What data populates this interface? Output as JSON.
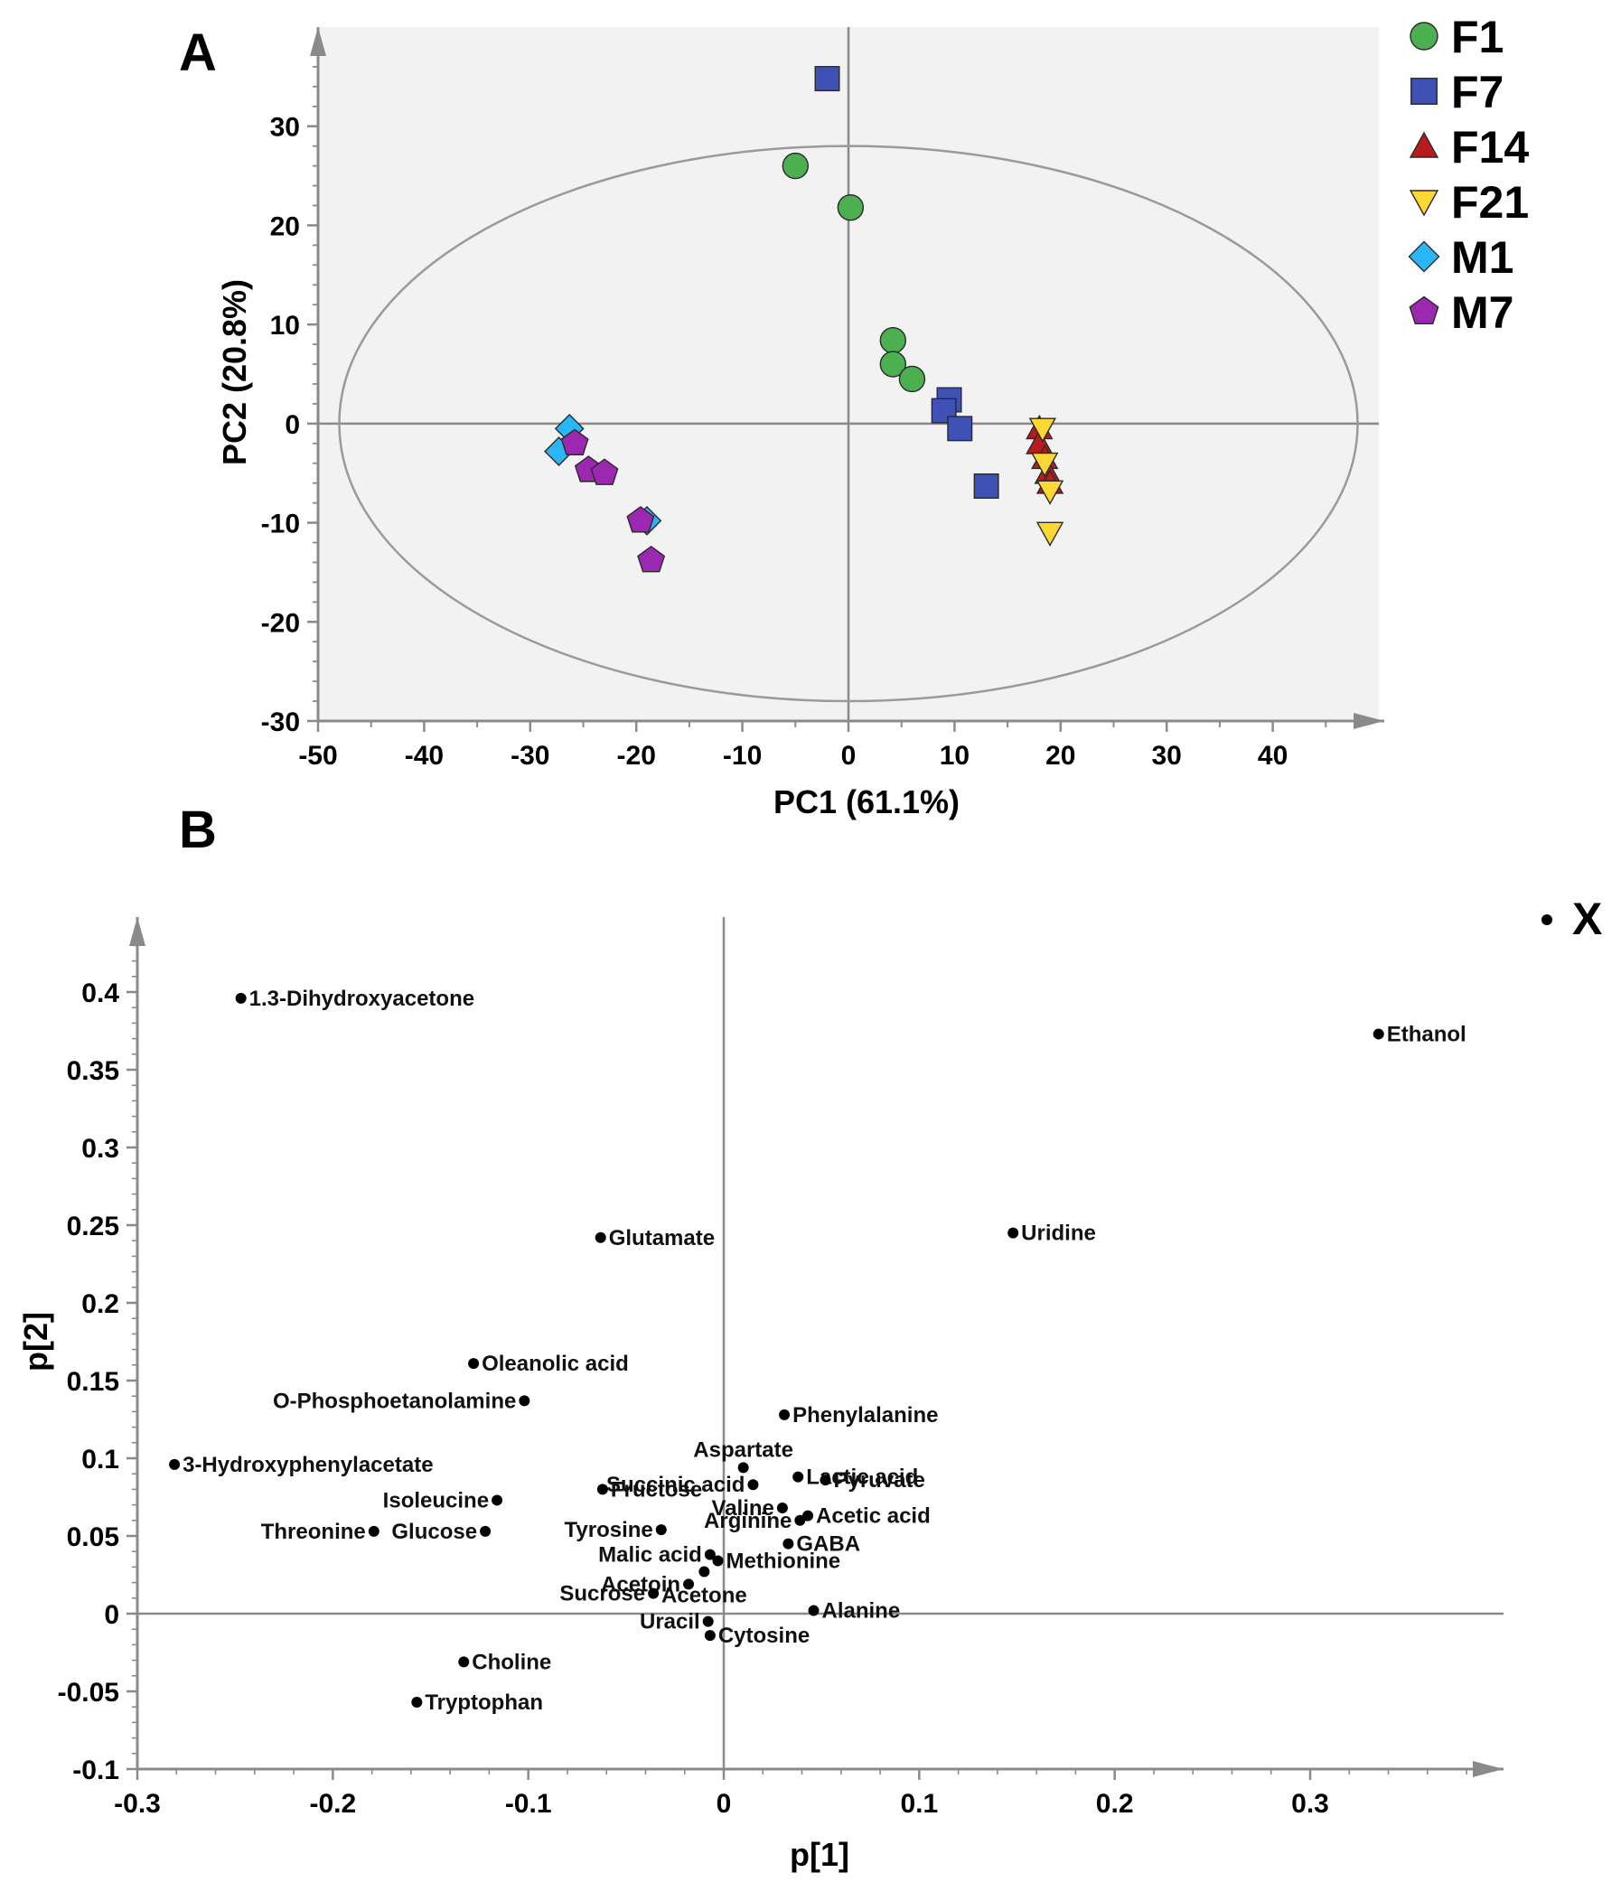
{
  "chart_data": [
    {
      "panel": "A",
      "type": "scatter",
      "title": "",
      "xlabel": "PC1 (61.1%)",
      "ylabel": "PC2 (20.8%)",
      "xlim": [
        -50,
        50
      ],
      "ylim": [
        -30,
        40
      ],
      "xticks": [
        -50,
        -40,
        -30,
        -20,
        -10,
        0,
        10,
        20,
        30,
        40
      ],
      "yticks": [
        -30,
        -20,
        -10,
        0,
        10,
        20,
        30
      ],
      "ellipse": {
        "cx": 0,
        "cy": 0,
        "rx": 48,
        "ry": 28
      },
      "legend_position": "right",
      "series": [
        {
          "name": "F1",
          "marker": "circle",
          "color": "#4caf50",
          "points": [
            [
              -5,
              26
            ],
            [
              0.2,
              21.8
            ],
            [
              4.2,
              8.4
            ],
            [
              4.2,
              6
            ],
            [
              6,
              4.5
            ]
          ]
        },
        {
          "name": "F7",
          "marker": "square",
          "color": "#3f51b5",
          "points": [
            [
              -2,
              34.8
            ],
            [
              9.5,
              2.4
            ],
            [
              9,
              1.3
            ],
            [
              10.5,
              -0.5
            ],
            [
              13,
              -6.3
            ]
          ]
        },
        {
          "name": "F14",
          "marker": "triangle-up",
          "color": "#b71c1c",
          "points": [
            [
              18,
              -0.5
            ],
            [
              18,
              -2
            ],
            [
              18.5,
              -3.5
            ],
            [
              18.8,
              -5
            ],
            [
              19,
              -6
            ]
          ]
        },
        {
          "name": "F21",
          "marker": "triangle-down",
          "color": "#fdd835",
          "points": [
            [
              18.3,
              -0.5
            ],
            [
              18.5,
              -4
            ],
            [
              19,
              -6.8
            ],
            [
              19,
              -11
            ]
          ]
        },
        {
          "name": "M1",
          "marker": "diamond",
          "color": "#29b6f6",
          "points": [
            [
              -26.3,
              -0.5
            ],
            [
              -27.3,
              -2.8
            ],
            [
              -19,
              -9.8
            ]
          ]
        },
        {
          "name": "M7",
          "marker": "pentagon",
          "color": "#9c27b0",
          "points": [
            [
              -25.8,
              -2
            ],
            [
              -24.5,
              -4.7
            ],
            [
              -23,
              -5
            ],
            [
              -19.6,
              -9.8
            ],
            [
              -18.6,
              -13.8
            ]
          ]
        }
      ]
    },
    {
      "panel": "B",
      "type": "scatter",
      "title": "",
      "xlabel": "p[1]",
      "ylabel": "p[2]",
      "xlim": [
        -0.3,
        0.4
      ],
      "ylim": [
        -0.1,
        0.45
      ],
      "xticks": [
        -0.3,
        -0.2,
        -0.1,
        0,
        0.1,
        0.2,
        0.3
      ],
      "ytick_labels": [
        "-0.1",
        "-0.05",
        "0",
        "0.05",
        "0.1",
        "0.15",
        "0.2",
        "0.25",
        "0.3",
        "0.35",
        "0.4"
      ],
      "xtick_labels": [
        "-0.3",
        "-0.2",
        "-0.1",
        "0",
        "0.1",
        "0.2",
        "0.3"
      ],
      "legend": [
        {
          "name": "X",
          "marker": "dot",
          "color": "#000000"
        }
      ],
      "legend_position": "top-right",
      "points": [
        {
          "label": "1.3-Dihydroxyacetone",
          "x": -0.247,
          "y": 0.396,
          "anchor": "right"
        },
        {
          "label": "Ethanol",
          "x": 0.335,
          "y": 0.373,
          "anchor": "right"
        },
        {
          "label": "Glutamate",
          "x": -0.063,
          "y": 0.242,
          "anchor": "right"
        },
        {
          "label": "Uridine",
          "x": 0.148,
          "y": 0.245,
          "anchor": "right"
        },
        {
          "label": "Oleanolic acid",
          "x": -0.128,
          "y": 0.161,
          "anchor": "right"
        },
        {
          "label": "O-Phosphoetanolamine",
          "x": -0.102,
          "y": 0.137,
          "anchor": "left"
        },
        {
          "label": "Phenylalanine",
          "x": 0.031,
          "y": 0.128,
          "anchor": "right"
        },
        {
          "label": "3-Hydroxyphenylacetate",
          "x": -0.281,
          "y": 0.096,
          "anchor": "right"
        },
        {
          "label": "Aspartate",
          "x": 0.01,
          "y": 0.094,
          "anchor": "above"
        },
        {
          "label": "Lactic acid",
          "x": 0.038,
          "y": 0.088,
          "anchor": "right"
        },
        {
          "label": "Pyruvate",
          "x": 0.052,
          "y": 0.086,
          "anchor": "right"
        },
        {
          "label": "Succinic acid",
          "x": 0.015,
          "y": 0.083,
          "anchor": "left"
        },
        {
          "label": "Fructose",
          "x": -0.062,
          "y": 0.08,
          "anchor": "right"
        },
        {
          "label": "Isoleucine",
          "x": -0.116,
          "y": 0.073,
          "anchor": "left"
        },
        {
          "label": "Valine",
          "x": 0.03,
          "y": 0.068,
          "anchor": "left"
        },
        {
          "label": "Acetic acid",
          "x": 0.043,
          "y": 0.063,
          "anchor": "right"
        },
        {
          "label": "Arginine",
          "x": 0.039,
          "y": 0.06,
          "anchor": "left"
        },
        {
          "label": "Tyrosine",
          "x": -0.032,
          "y": 0.054,
          "anchor": "left"
        },
        {
          "label": "Threonine",
          "x": -0.179,
          "y": 0.053,
          "anchor": "left"
        },
        {
          "label": "Glucose",
          "x": -0.122,
          "y": 0.053,
          "anchor": "left"
        },
        {
          "label": "GABA",
          "x": 0.033,
          "y": 0.045,
          "anchor": "right"
        },
        {
          "label": "Malic acid",
          "x": -0.007,
          "y": 0.038,
          "anchor": "left"
        },
        {
          "label": "Methionine",
          "x": -0.003,
          "y": 0.034,
          "anchor": "right"
        },
        {
          "label": "Acetoin",
          "x": -0.018,
          "y": 0.019,
          "anchor": "left"
        },
        {
          "label": "Acetone",
          "x": -0.01,
          "y": 0.027,
          "anchor": "below"
        },
        {
          "label": "Sucrose",
          "x": -0.036,
          "y": 0.013,
          "anchor": "left"
        },
        {
          "label": "Alanine",
          "x": 0.046,
          "y": 0.002,
          "anchor": "right"
        },
        {
          "label": "Uracil",
          "x": -0.008,
          "y": -0.005,
          "anchor": "left"
        },
        {
          "label": "Cytosine",
          "x": -0.007,
          "y": -0.014,
          "anchor": "right"
        },
        {
          "label": "Choline",
          "x": -0.133,
          "y": -0.031,
          "anchor": "right"
        },
        {
          "label": "Tryptophan",
          "x": -0.157,
          "y": -0.057,
          "anchor": "right"
        }
      ]
    }
  ]
}
